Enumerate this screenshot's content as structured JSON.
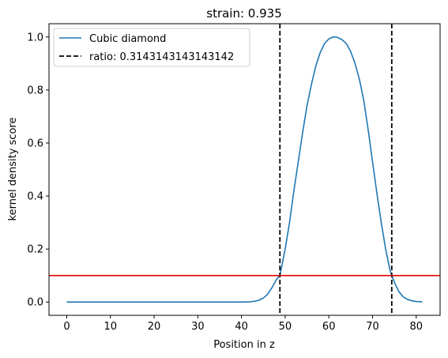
{
  "chart_data": {
    "type": "line",
    "title": "strain: 0.935",
    "xlabel": "Position in z",
    "ylabel": "kernel density score",
    "xlim": [
      -4.07,
      85.47
    ],
    "ylim": [
      -0.05,
      1.05
    ],
    "xticks": [
      0,
      10,
      20,
      30,
      40,
      50,
      60,
      70,
      80
    ],
    "xtick_labels": [
      "0",
      "10",
      "20",
      "30",
      "40",
      "50",
      "60",
      "70",
      "80"
    ],
    "yticks": [
      0.0,
      0.2,
      0.4,
      0.6,
      0.8,
      1.0
    ],
    "ytick_labels": [
      "0.0",
      "0.2",
      "0.4",
      "0.6",
      "0.8",
      "1.0"
    ],
    "grid": false,
    "legend_position": "upper-left",
    "series": [
      {
        "name": "Cubic diamond",
        "color": "#1f77b4",
        "style": "solid",
        "x": [
          0,
          5,
          10,
          15,
          20,
          25,
          30,
          35,
          38,
          40,
          42,
          43,
          44,
          45,
          46,
          47,
          48,
          48.8,
          50,
          51,
          52,
          53,
          54,
          55,
          56,
          57,
          58,
          59,
          60,
          61,
          61.5,
          62,
          63,
          64,
          65,
          66,
          67,
          68,
          69,
          70,
          71,
          72,
          73,
          74,
          74.4,
          75,
          76,
          77,
          78,
          79,
          80,
          81.4
        ],
        "y": [
          0.0,
          0.0,
          0.0,
          0.0,
          0.0,
          0.0,
          0.0,
          0.0,
          0.0,
          0.0,
          0.001,
          0.003,
          0.007,
          0.015,
          0.03,
          0.055,
          0.085,
          0.1,
          0.2,
          0.3,
          0.42,
          0.53,
          0.64,
          0.74,
          0.82,
          0.89,
          0.94,
          0.975,
          0.993,
          1.0,
          1.0,
          0.998,
          0.99,
          0.975,
          0.945,
          0.9,
          0.84,
          0.76,
          0.65,
          0.53,
          0.41,
          0.3,
          0.2,
          0.12,
          0.1,
          0.075,
          0.04,
          0.02,
          0.01,
          0.005,
          0.002,
          0.001
        ]
      },
      {
        "name": "ratio: 0.3143143143143142",
        "color": "#000000",
        "style": "dashed",
        "vlines": [
          48.8,
          74.4
        ]
      },
      {
        "color": "#e00000",
        "style": "solid",
        "hline": 0.1
      }
    ]
  }
}
